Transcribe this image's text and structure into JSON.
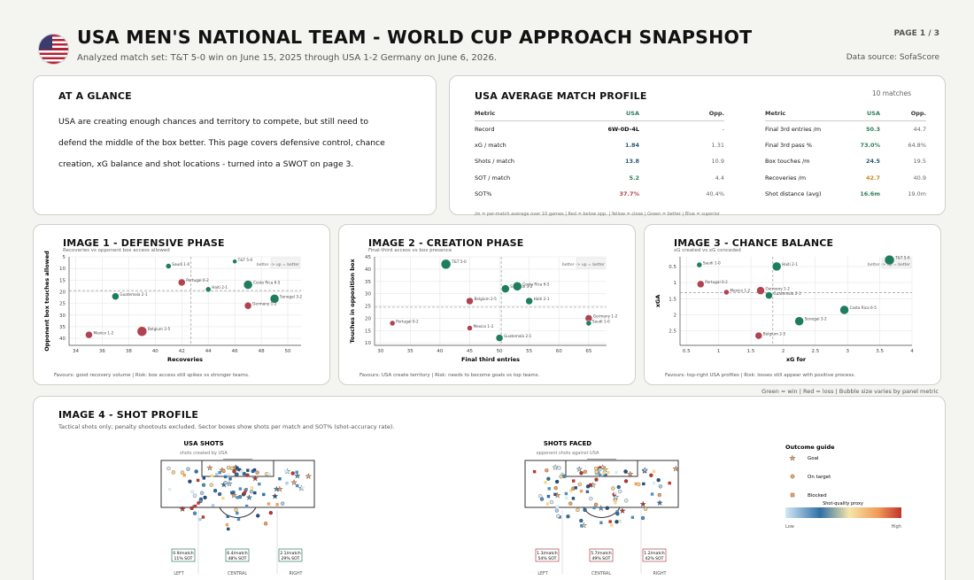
{
  "header": {
    "title": "USA MEN'S NATIONAL TEAM - WORLD CUP APPROACH SNAPSHOT",
    "subtitle": "Analyzed match set: T&T 5-0 win on June 15, 2025 through USA 1-2 Germany on June 6, 2026.",
    "page": "PAGE 1 / 3",
    "source": "Data source: SofaScore"
  },
  "glance": {
    "title": "AT A GLANCE",
    "text": "USA are creating enough chances and territory to compete, but still need to defend the middle of the box better. This page covers defensive control, chance creation, xG balance and shot locations - turned into a SWOT on page 3."
  },
  "profile": {
    "title": "USA AVERAGE MATCH PROFILE",
    "matches": "10 matches",
    "headers": [
      "Metric",
      "USA",
      "Opp."
    ],
    "left": [
      {
        "m": "Record",
        "u": "6W-0D-4L",
        "o": "-",
        "c": "#111"
      },
      {
        "m": "xG / match",
        "u": "1.84",
        "o": "1.31",
        "c": "#2a5878"
      },
      {
        "m": "Shots / match",
        "u": "13.8",
        "o": "10.9",
        "c": "#2a5878"
      },
      {
        "m": "SOT / match",
        "u": "5.2",
        "o": "4.4",
        "c": "#2e7d5b"
      },
      {
        "m": "SOT%",
        "u": "37.7%",
        "o": "40.4%",
        "c": "#b5414d"
      }
    ],
    "right": [
      {
        "m": "Final 3rd entries /m",
        "u": "50.3",
        "o": "44.7",
        "c": "#2e7d5b"
      },
      {
        "m": "Final 3rd pass %",
        "u": "73.0%",
        "o": "64.8%",
        "c": "#2e7d5b"
      },
      {
        "m": "Box touches /m",
        "u": "24.5",
        "o": "19.5",
        "c": "#2a5878"
      },
      {
        "m": "Recoveries /m",
        "u": "42.7",
        "o": "40.9",
        "c": "#c98b1e"
      },
      {
        "m": "Shot distance (avg)",
        "u": "16.6m",
        "o": "19.0m",
        "c": "#2e7d5b"
      }
    ],
    "note": "/m = per-match average over 10 games | Red = below opp. | Yellow = close | Green = better | Blue = superior"
  },
  "colors": {
    "win": "#1e7d5d",
    "loss": "#b04350"
  },
  "legend_note": "Green = win | Red = loss | Bubble size varies by panel metric",
  "chart_data": [
    {
      "type": "scatter",
      "title": "IMAGE 1 - DEFENSIVE PHASE",
      "subtitle": "Recoveries vs opponent box access allowed",
      "xlabel": "Recoveries",
      "ylabel": "Opponent box touches allowed",
      "xlim": [
        33.5,
        51
      ],
      "ylim": [
        43,
        5
      ],
      "xticks": [
        34,
        36,
        38,
        40,
        42,
        44,
        46,
        48,
        50
      ],
      "yticks": [
        5,
        10,
        15,
        20,
        25,
        30,
        35,
        40
      ],
      "ref": {
        "x": 42.7,
        "y": 19.5
      },
      "corner": "better -> up = better",
      "footer": "Favours: good recovery volume | Risk: box access still spikes vs stronger teams.",
      "points": [
        {
          "label": "T&T 5-0",
          "x": 46,
          "y": 7,
          "r": "W",
          "s": 2.5
        },
        {
          "label": "Saudi 1-0",
          "x": 41,
          "y": 9,
          "r": "W",
          "s": 3
        },
        {
          "label": "Portugal 0-2",
          "x": 42,
          "y": 16,
          "r": "L",
          "s": 4
        },
        {
          "label": "Haiti 2-1",
          "x": 44,
          "y": 19,
          "r": "W",
          "s": 3
        },
        {
          "label": "Costa Rica 6-5",
          "x": 47,
          "y": 17,
          "r": "W",
          "s": 5
        },
        {
          "label": "Guatemala 2-1",
          "x": 37,
          "y": 22,
          "r": "W",
          "s": 4
        },
        {
          "label": "Senegal 3-2",
          "x": 49,
          "y": 23,
          "r": "W",
          "s": 5
        },
        {
          "label": "Germany 1-2",
          "x": 47,
          "y": 26,
          "r": "L",
          "s": 4
        },
        {
          "label": "Belgium 2-5",
          "x": 39,
          "y": 37,
          "r": "L",
          "s": 5.5
        },
        {
          "label": "Mexico 1-2",
          "x": 35,
          "y": 38.5,
          "r": "L",
          "s": 4
        }
      ]
    },
    {
      "type": "scatter",
      "title": "IMAGE 2 - CREATION PHASE",
      "subtitle": "Final-third access vs box presence",
      "xlabel": "Final third entries",
      "ylabel": "Touches in opposition box",
      "xlim": [
        29,
        68
      ],
      "ylim": [
        9,
        45
      ],
      "xticks": [
        30,
        35,
        40,
        45,
        50,
        55,
        60,
        65
      ],
      "yticks": [
        10,
        15,
        20,
        25,
        30,
        35,
        40,
        45
      ],
      "ref": {
        "x": 50.3,
        "y": 24.5
      },
      "corner": "better -> up = better",
      "footer": "Favours: USA create territory | Risk: needs to become goals vs top teams.",
      "points": [
        {
          "label": "T&T 5-0",
          "x": 41,
          "y": 42,
          "r": "W",
          "s": 5.5
        },
        {
          "label": "Senegal 3-2",
          "x": 51,
          "y": 32,
          "r": "W",
          "s": 4.5
        },
        {
          "label": "Costa Rica 6-5",
          "x": 53,
          "y": 33,
          "r": "W",
          "s": 5
        },
        {
          "label": "Haiti 2-1",
          "x": 55,
          "y": 27,
          "r": "W",
          "s": 4
        },
        {
          "label": "Belgium 2-5",
          "x": 45,
          "y": 27,
          "r": "L",
          "s": 4
        },
        {
          "label": "Germany 1-2",
          "x": 65,
          "y": 20,
          "r": "L",
          "s": 4
        },
        {
          "label": "Saudi 1-0",
          "x": 65,
          "y": 18,
          "r": "W",
          "s": 3
        },
        {
          "label": "Portugal 0-2",
          "x": 32,
          "y": 18,
          "r": "L",
          "s": 3
        },
        {
          "label": "Mexico 1-2",
          "x": 45,
          "y": 16,
          "r": "L",
          "s": 3
        },
        {
          "label": "Guatemala 2-1",
          "x": 50,
          "y": 12,
          "r": "W",
          "s": 4
        }
      ]
    },
    {
      "type": "scatter",
      "title": "IMAGE 3 - CHANCE BALANCE",
      "subtitle": "xG created vs xG conceded",
      "xlabel": "xG for",
      "ylabel": "xGA",
      "xlim": [
        0.4,
        4
      ],
      "ylim": [
        2.95,
        0.2
      ],
      "xticks": [
        0.5,
        1.0,
        1.5,
        2.0,
        2.5,
        3.0,
        3.5,
        4.0
      ],
      "yticks": [
        0.5,
        1.0,
        1.5,
        2.0,
        2.5
      ],
      "ref": {
        "x": 1.84,
        "y": 1.31
      },
      "corner": "better -> up = better",
      "footer": "Favours: top-right USA profiles | Risk: losses still appear with positive process.",
      "points": [
        {
          "label": "Saudi 1-0",
          "x": 0.7,
          "y": 0.45,
          "r": "W",
          "s": 3
        },
        {
          "label": "Haiti 2-1",
          "x": 1.9,
          "y": 0.5,
          "r": "W",
          "s": 5
        },
        {
          "label": "T&T 5-0",
          "x": 3.65,
          "y": 0.3,
          "r": "W",
          "s": 5.5
        },
        {
          "label": "Portugal 0-2",
          "x": 0.72,
          "y": 1.05,
          "r": "L",
          "s": 4
        },
        {
          "label": "Mexico 1-2",
          "x": 1.12,
          "y": 1.3,
          "r": "L",
          "s": 3
        },
        {
          "label": "Germany 1-2",
          "x": 1.65,
          "y": 1.25,
          "r": "L",
          "s": 4.5
        },
        {
          "label": "Guatemala 2-1",
          "x": 1.78,
          "y": 1.4,
          "r": "W",
          "s": 4
        },
        {
          "label": "Costa Rica 6-5",
          "x": 2.95,
          "y": 1.85,
          "r": "W",
          "s": 5
        },
        {
          "label": "Senegal 3-2",
          "x": 2.25,
          "y": 2.2,
          "r": "W",
          "s": 5
        },
        {
          "label": "Belgium 2-5",
          "x": 1.62,
          "y": 2.65,
          "r": "L",
          "s": 4
        }
      ]
    },
    {
      "type": "scatter",
      "title": "IMAGE 4 - SHOT PROFILE",
      "subtitle": "Tactical shots only; penalty shootouts excluded. Sector boxes show shots per match and SOT% (shot-accuracy rate).",
      "pitches": [
        {
          "title": "USA SHOTS",
          "sub": "shots created by USA",
          "accent": "#2e7d5b",
          "sectors": [
            {
              "name": "LEFT",
              "line1": "0.9/match",
              "line2": "11% SOT"
            },
            {
              "name": "CENTRAL",
              "line1": "6.4/match",
              "line2": "48% SOT"
            },
            {
              "name": "RIGHT",
              "line1": "2.1/match",
              "line2": "29% SOT"
            }
          ]
        },
        {
          "title": "SHOTS FACED",
          "sub": "opponent shots against USA",
          "accent": "#b04350",
          "sectors": [
            {
              "name": "LEFT",
              "line1": "1.3/match",
              "line2": "54% SOT"
            },
            {
              "name": "CENTRAL",
              "line1": "5.7/match",
              "line2": "49% SOT"
            },
            {
              "name": "RIGHT",
              "line1": "1.2/match",
              "line2": "42% SOT"
            }
          ]
        }
      ],
      "legend": {
        "title": "Outcome guide",
        "items": [
          "Goal",
          "On target",
          "Blocked"
        ],
        "scale_title": "Shot-quality proxy",
        "low": "Low",
        "high": "High"
      }
    }
  ]
}
